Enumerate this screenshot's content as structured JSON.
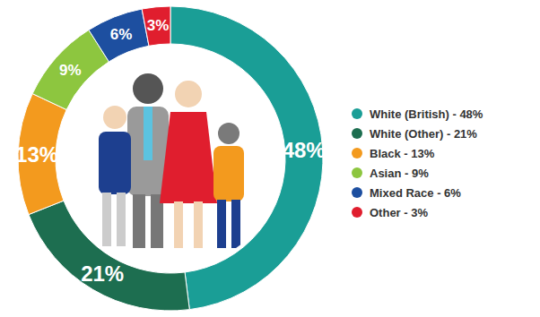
{
  "chart_data": {
    "type": "pie",
    "categories": [
      "White (British) - 48%",
      "White (Other) - 21%",
      "Black - 13%",
      "Asian - 9%",
      "Mixed Race - 6%",
      "Other - 3%"
    ],
    "values": [
      48,
      21,
      13,
      9,
      6,
      3
    ],
    "value_labels": [
      "48%",
      "21%",
      "13%",
      "9%",
      "6%",
      "3%"
    ],
    "colors": [
      "#1a9e96",
      "#1d6e50",
      "#f39a1e",
      "#8dc63f",
      "#1d4fa0",
      "#e01e2e"
    ],
    "data_labels": true,
    "legend": "right"
  }
}
